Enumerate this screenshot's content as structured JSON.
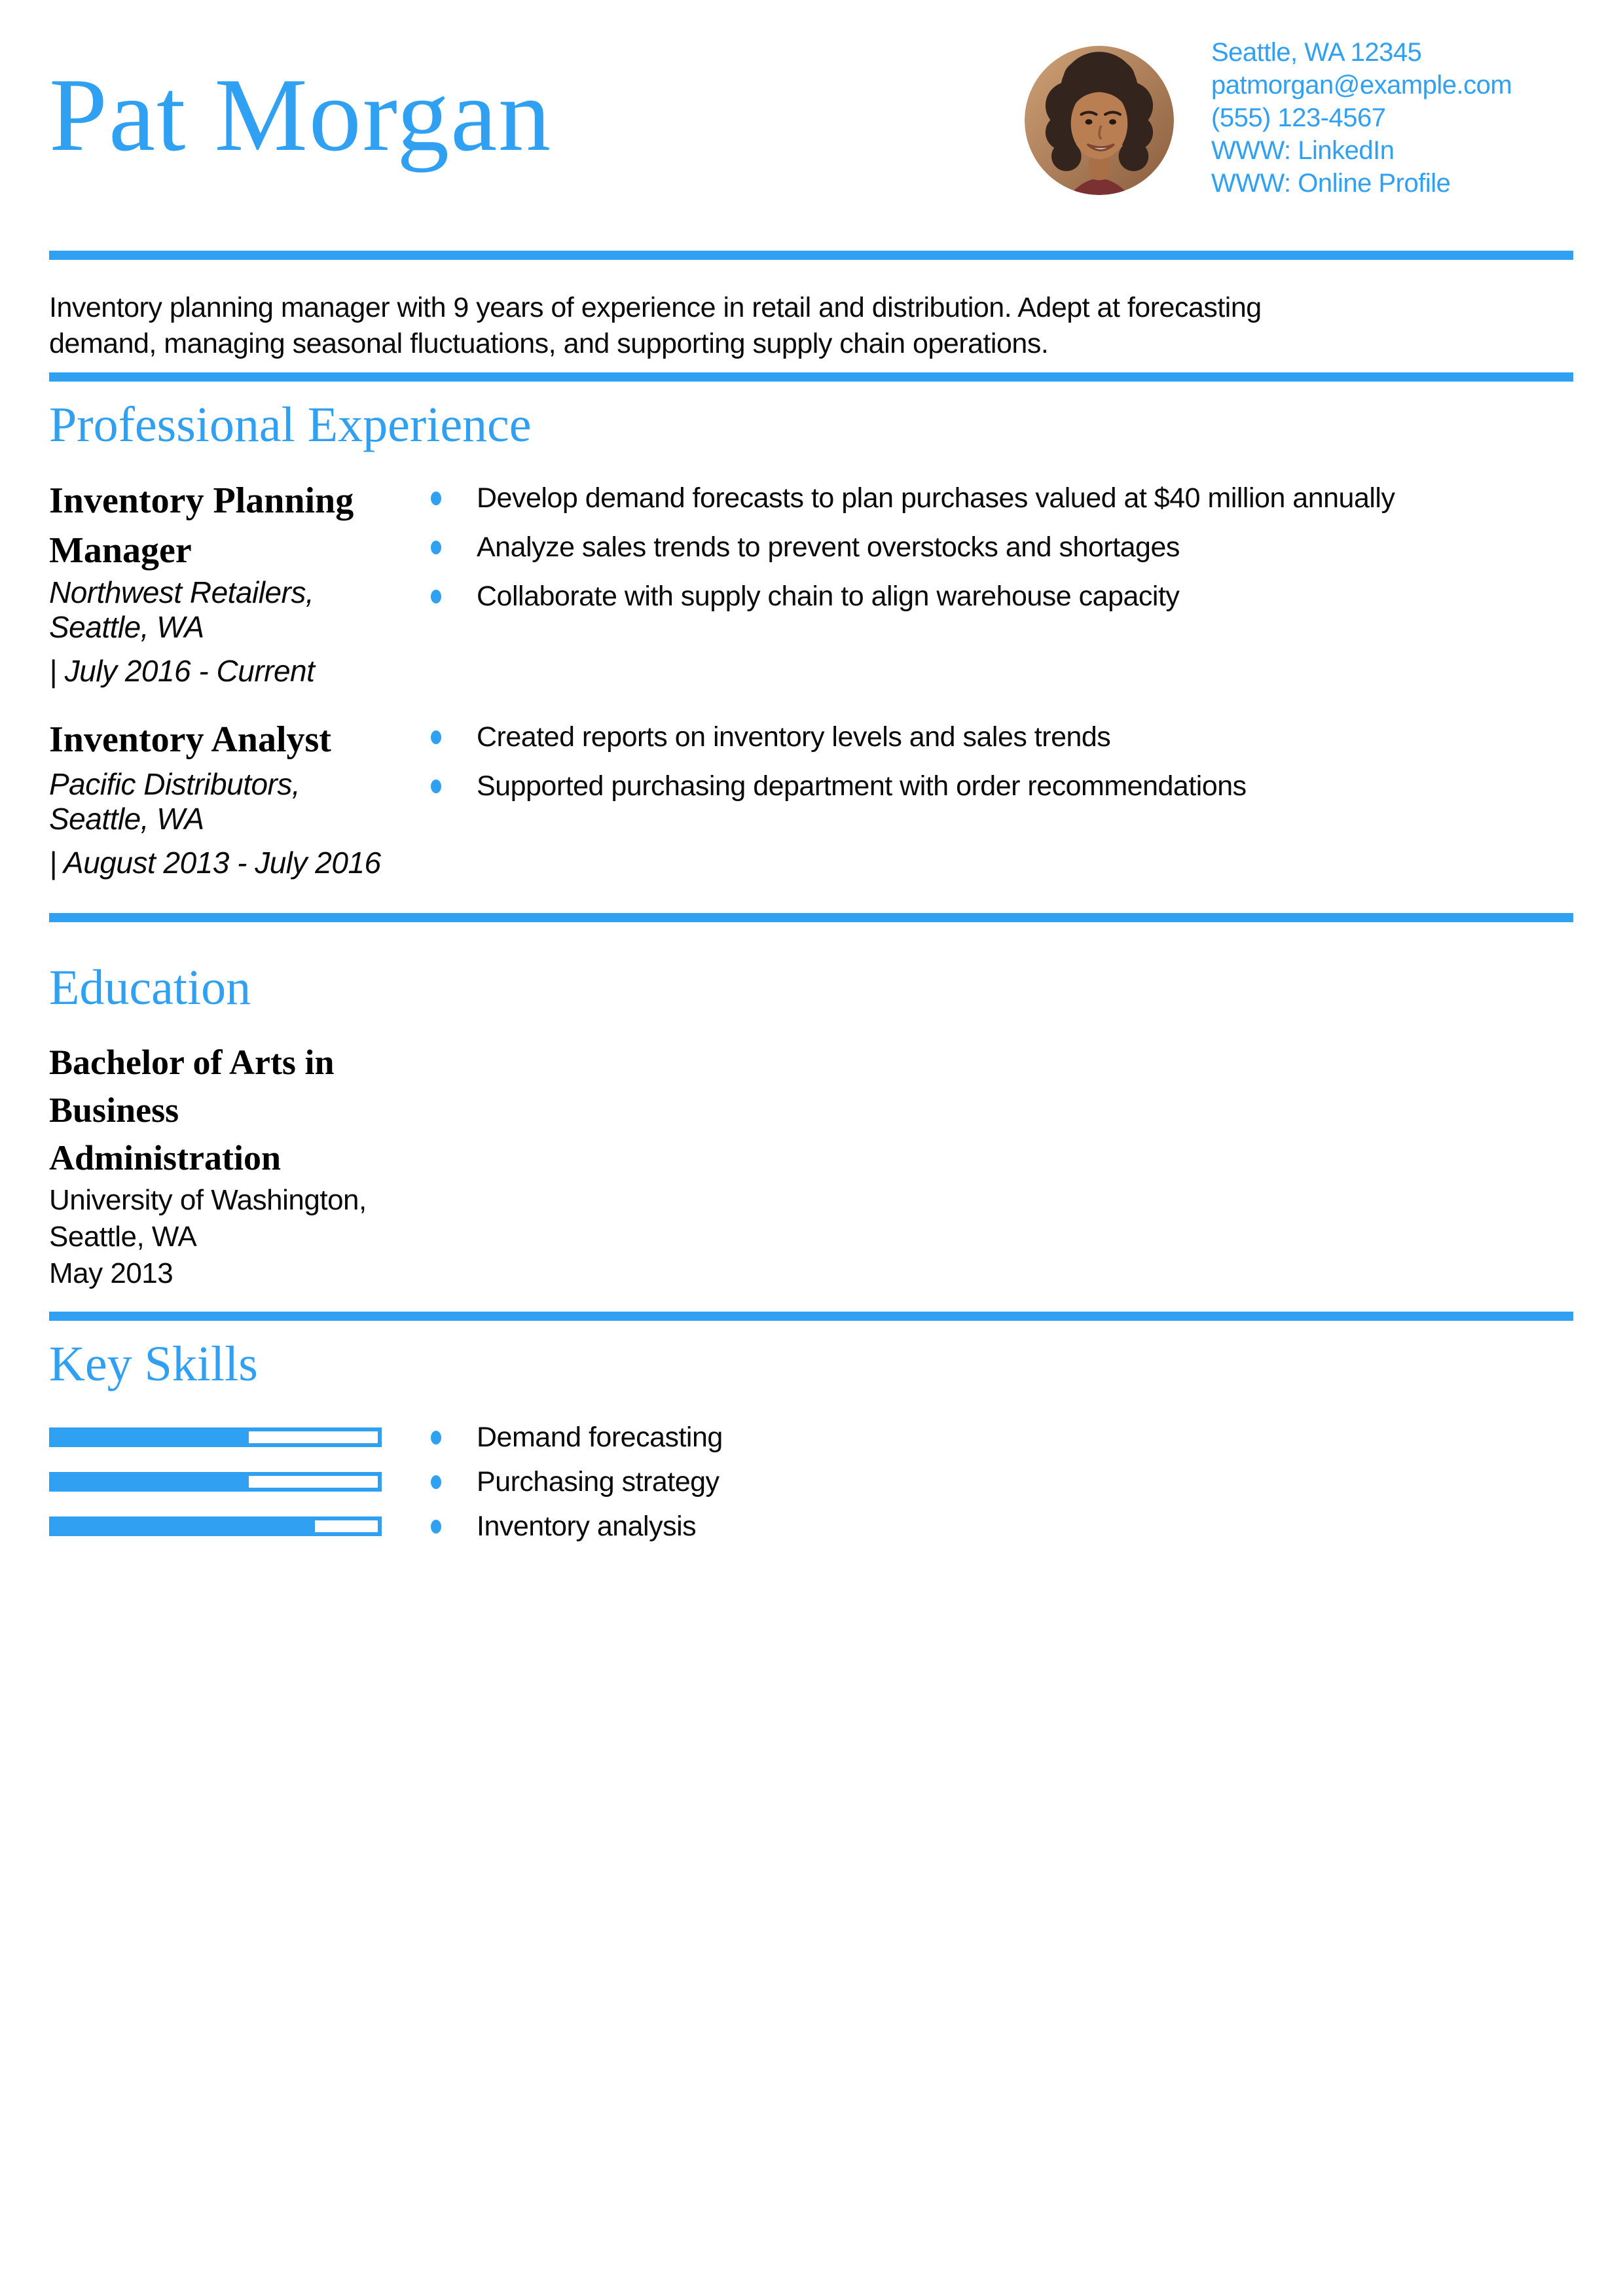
{
  "accent": "#2fa0f2",
  "header": {
    "name": "Pat Morgan",
    "photo": "headshot of smiling person with dark curly hair",
    "contact_lines": [
      "Seattle, WA 12345",
      "patmorgan@example.com",
      "(555) 123-4567",
      "WWW: LinkedIn",
      "WWW: Online Profile"
    ]
  },
  "summary": "Inventory planning manager with 9 years of experience in retail and distribution. Adept at forecasting demand, managing seasonal fluctuations, and supporting supply chain operations.",
  "experience": {
    "heading": "Professional Experience",
    "jobs": [
      {
        "title": "Inventory Planning Manager",
        "company_location": "Northwest Retailers, Seattle, WA",
        "dates": "| July 2016 - Current",
        "bullets": [
          "Develop demand forecasts to plan purchases valued at $40 million annually",
          "Analyze sales trends to prevent overstocks and shortages",
          "Collaborate with supply chain to align warehouse capacity"
        ]
      },
      {
        "title": "Inventory Analyst",
        "company_location": "Pacific Distributors, Seattle, WA",
        "dates": "| August 2013 - July 2016",
        "bullets": [
          "Created reports on inventory levels and sales trends",
          "Supported purchasing department with order recommendations"
        ]
      }
    ]
  },
  "education": {
    "heading": "Education",
    "degree": "Bachelor of Arts in Business Administration",
    "school": "University of Washington, Seattle, WA",
    "date": "May 2013"
  },
  "key_skills": {
    "heading": "Key Skills",
    "skills": [
      {
        "label": "Demand forecasting",
        "percent": 60
      },
      {
        "label": "Purchasing strategy",
        "percent": 60
      },
      {
        "label": "Inventory analysis",
        "percent": 80
      }
    ]
  }
}
